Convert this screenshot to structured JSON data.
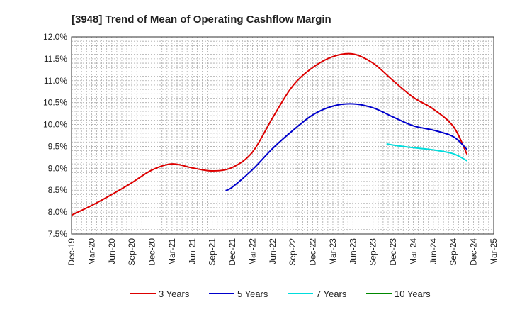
{
  "chart_data": {
    "type": "line",
    "title": "[3948]  Trend of Mean of Operating Cashflow Margin",
    "xlabel": "",
    "ylabel": "",
    "ylim": [
      7.5,
      12.0
    ],
    "y_ticks": [
      7.5,
      8.0,
      8.5,
      9.0,
      9.5,
      10.0,
      10.5,
      11.0,
      11.5,
      12.0
    ],
    "y_tick_labels": [
      "7.5%",
      "8.0%",
      "8.5%",
      "9.0%",
      "9.5%",
      "10.0%",
      "10.5%",
      "11.0%",
      "11.5%",
      "12.0%"
    ],
    "x_tick_labels": [
      "Dec-19",
      "Mar-20",
      "Jun-20",
      "Sep-20",
      "Dec-20",
      "Mar-21",
      "Jun-21",
      "Sep-21",
      "Dec-21",
      "Mar-22",
      "Jun-22",
      "Sep-22",
      "Dec-22",
      "Mar-23",
      "Jun-23",
      "Sep-23",
      "Dec-23",
      "Mar-24",
      "Jun-24",
      "Sep-24",
      "Dec-24",
      "Mar-25"
    ],
    "grid": true,
    "legend_position": "bottom",
    "series": [
      {
        "name": "3 Years",
        "color": "#dd0000",
        "points": [
          [
            0,
            7.93
          ],
          [
            1,
            8.15
          ],
          [
            2,
            8.4
          ],
          [
            3,
            8.67
          ],
          [
            4,
            8.96
          ],
          [
            5,
            9.1
          ],
          [
            6,
            9.01
          ],
          [
            7,
            8.94
          ],
          [
            8,
            9.02
          ],
          [
            9,
            9.37
          ],
          [
            10,
            10.15
          ],
          [
            11,
            10.88
          ],
          [
            12,
            11.3
          ],
          [
            13,
            11.55
          ],
          [
            14,
            11.61
          ],
          [
            15,
            11.4
          ],
          [
            16,
            11.0
          ],
          [
            17,
            10.62
          ],
          [
            18,
            10.35
          ],
          [
            19,
            9.95
          ],
          [
            19.67,
            9.32
          ]
        ]
      },
      {
        "name": "5 Years",
        "color": "#0000cc",
        "points": [
          [
            7.67,
            8.49
          ],
          [
            8,
            8.57
          ],
          [
            9,
            8.97
          ],
          [
            10,
            9.45
          ],
          [
            11,
            9.86
          ],
          [
            12,
            10.22
          ],
          [
            13,
            10.42
          ],
          [
            14,
            10.47
          ],
          [
            15,
            10.38
          ],
          [
            16,
            10.17
          ],
          [
            17,
            9.97
          ],
          [
            18,
            9.87
          ],
          [
            19,
            9.72
          ],
          [
            19.67,
            9.43
          ]
        ]
      },
      {
        "name": "7 Years",
        "color": "#00dddd",
        "points": [
          [
            15.67,
            9.56
          ],
          [
            16,
            9.53
          ],
          [
            17,
            9.47
          ],
          [
            18,
            9.42
          ],
          [
            19,
            9.33
          ],
          [
            19.67,
            9.17
          ]
        ]
      },
      {
        "name": "10 Years",
        "color": "#008800",
        "points": []
      }
    ]
  }
}
